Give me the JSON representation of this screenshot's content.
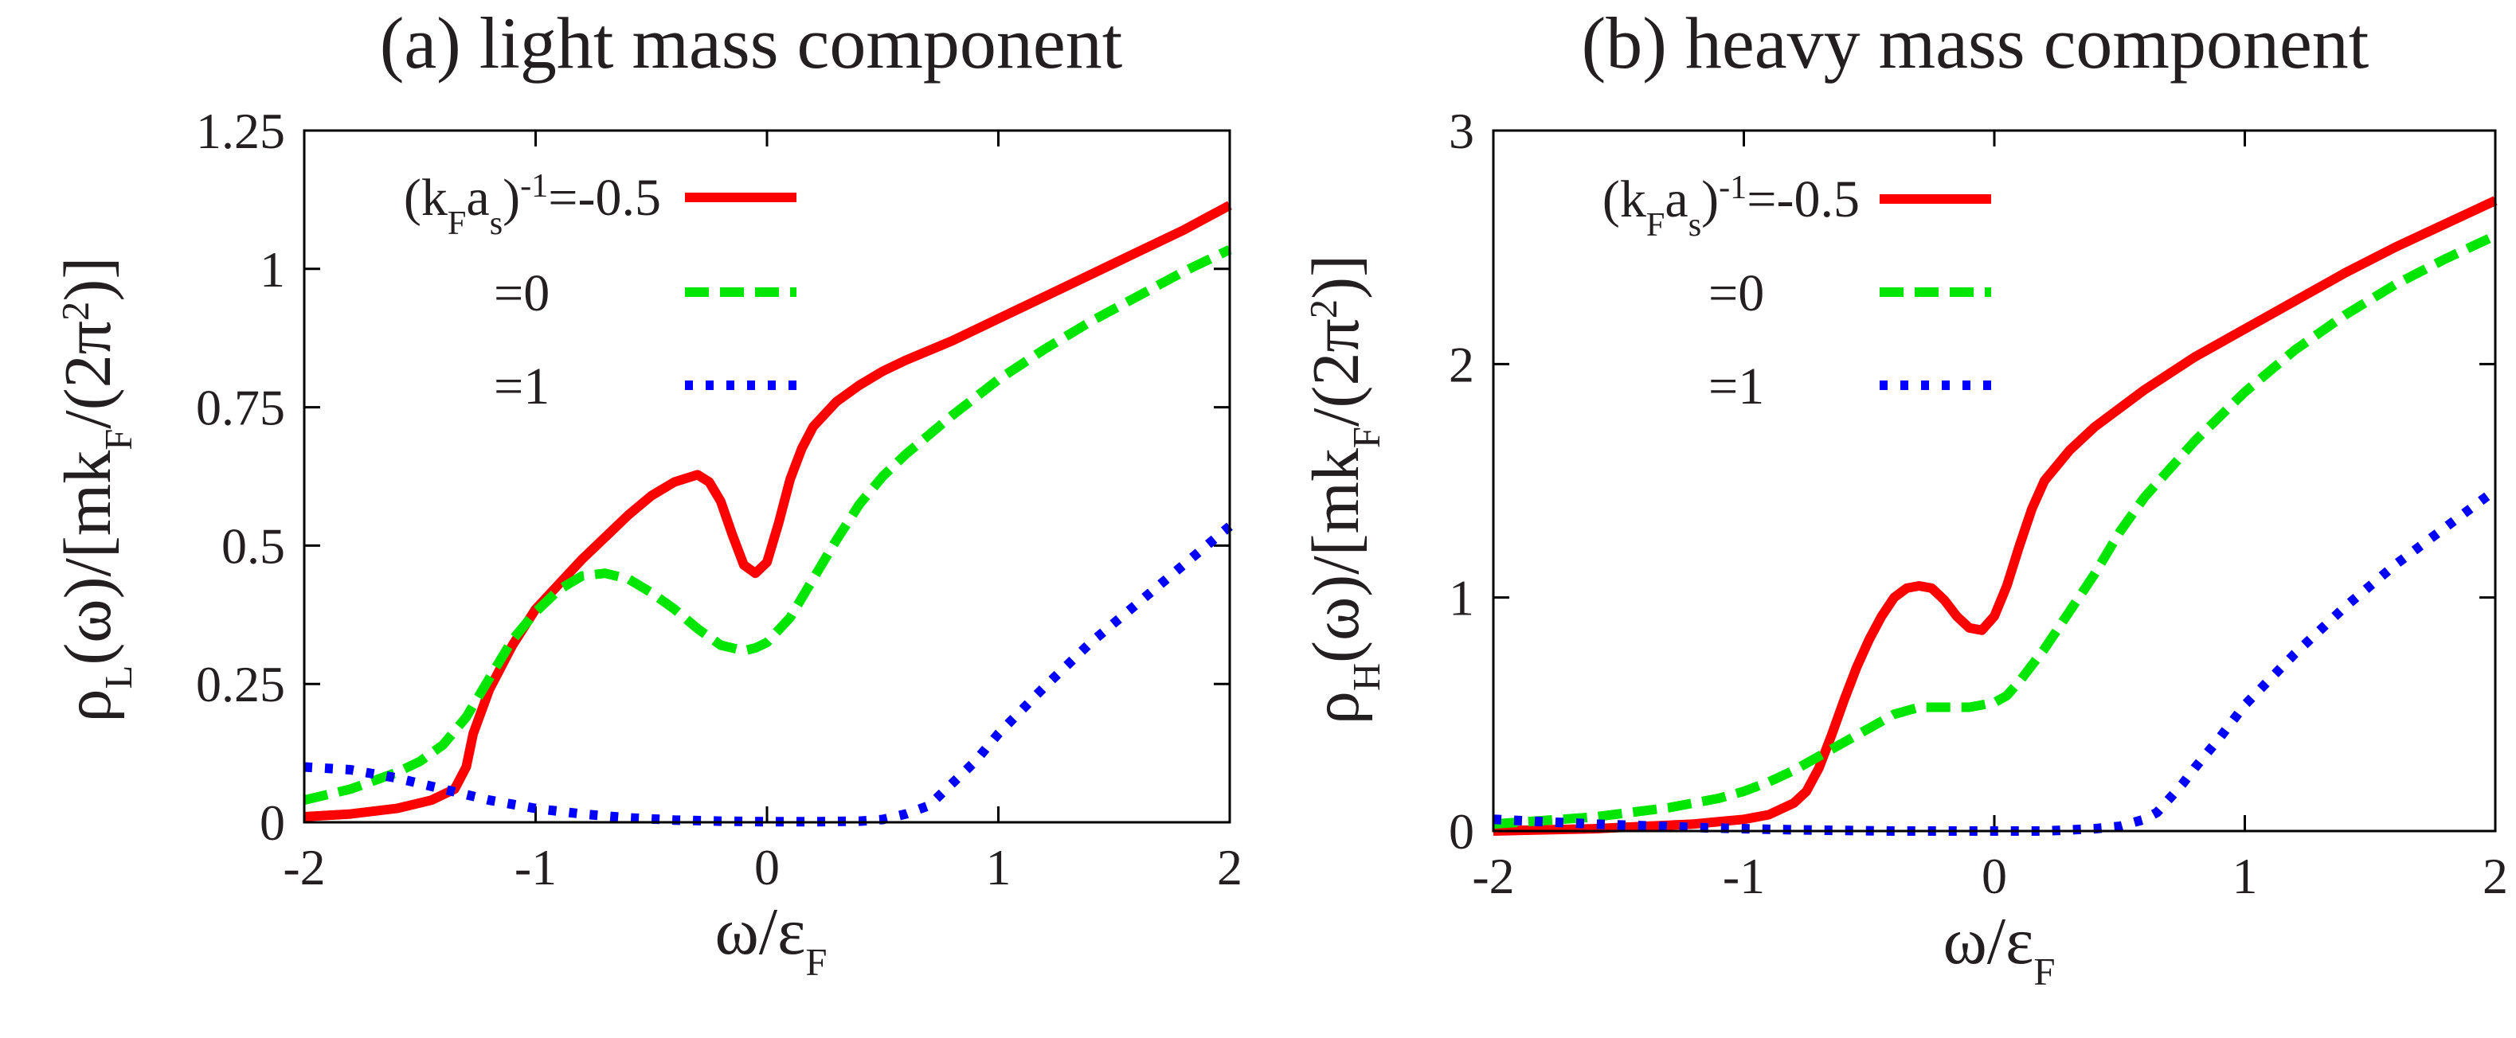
{
  "chart_data": [
    {
      "type": "line",
      "title": "(a) light mass component",
      "ylabel": {
        "pre": "ρ",
        "sub": "L",
        "mid": "(ω)/[mk",
        "sub2": "F",
        "post": "/(2π",
        "sup": "2",
        "end": ")]"
      },
      "xlabel": {
        "pre": "ω/ε",
        "sub": "F"
      },
      "xlim": [
        -2,
        2
      ],
      "ylim": [
        0,
        1.25
      ],
      "xticks": [
        -2,
        -1,
        0,
        1,
        2
      ],
      "xtick_labels": [
        "-2",
        "-1",
        "0",
        "1",
        "2"
      ],
      "yticks": [
        0,
        0.25,
        0.5,
        0.75,
        1,
        1.25
      ],
      "ytick_labels": [
        "0",
        "0.25",
        "0.5",
        "0.75",
        "1",
        "1.25"
      ],
      "legend": {
        "placement": "top-left",
        "header": {
          "pre": "(k",
          "sub1": "F",
          "mid": "a",
          "sub2": "s",
          "post": ")",
          "sup": "-1",
          "eq": "=-0.5"
        }
      },
      "series": [
        {
          "name": "=-0.5",
          "color": "#ff0000",
          "style": "solid",
          "x": [
            -2,
            -1.8,
            -1.6,
            -1.5,
            -1.45,
            -1.4,
            -1.35,
            -1.3,
            -1.27,
            -1.2,
            -1.1,
            -1.0,
            -0.9,
            -0.8,
            -0.7,
            -0.6,
            -0.5,
            -0.4,
            -0.3,
            -0.25,
            -0.2,
            -0.15,
            -0.1,
            -0.05,
            0.0,
            0.05,
            0.1,
            0.15,
            0.2,
            0.3,
            0.4,
            0.5,
            0.6,
            0.8,
            1.0,
            1.2,
            1.4,
            1.6,
            1.8,
            2.0
          ],
          "y": [
            0.01,
            0.015,
            0.025,
            0.035,
            0.04,
            0.05,
            0.06,
            0.1,
            0.16,
            0.24,
            0.32,
            0.385,
            0.43,
            0.475,
            0.515,
            0.555,
            0.59,
            0.615,
            0.628,
            0.615,
            0.58,
            0.52,
            0.465,
            0.45,
            0.47,
            0.54,
            0.62,
            0.675,
            0.715,
            0.76,
            0.79,
            0.815,
            0.835,
            0.87,
            0.91,
            0.95,
            0.99,
            1.03,
            1.07,
            1.115
          ]
        },
        {
          "name": "=0",
          "color": "#00e600",
          "style": "dashed",
          "x": [
            -2,
            -1.8,
            -1.6,
            -1.5,
            -1.4,
            -1.3,
            -1.2,
            -1.1,
            -1.0,
            -0.9,
            -0.8,
            -0.7,
            -0.6,
            -0.5,
            -0.4,
            -0.3,
            -0.2,
            -0.1,
            -0.05,
            0.0,
            0.1,
            0.2,
            0.3,
            0.4,
            0.5,
            0.6,
            0.8,
            1.0,
            1.2,
            1.4,
            1.6,
            1.8,
            2.0
          ],
          "y": [
            0.04,
            0.06,
            0.09,
            0.11,
            0.14,
            0.19,
            0.26,
            0.33,
            0.38,
            0.42,
            0.445,
            0.45,
            0.44,
            0.415,
            0.385,
            0.35,
            0.32,
            0.31,
            0.315,
            0.325,
            0.37,
            0.44,
            0.51,
            0.575,
            0.625,
            0.665,
            0.735,
            0.8,
            0.855,
            0.905,
            0.95,
            0.995,
            1.035
          ]
        },
        {
          "name": "=1",
          "color": "#0000ff",
          "style": "dotted",
          "x": [
            -2,
            -1.8,
            -1.6,
            -1.4,
            -1.2,
            -1.0,
            -0.8,
            -0.6,
            -0.4,
            -0.2,
            0.0,
            0.2,
            0.4,
            0.5,
            0.6,
            0.7,
            0.8,
            0.9,
            1.0,
            1.2,
            1.4,
            1.6,
            1.8,
            2.0
          ],
          "y": [
            0.1,
            0.095,
            0.08,
            0.06,
            0.04,
            0.025,
            0.015,
            0.008,
            0.004,
            0.002,
            0.001,
            0.001,
            0.002,
            0.005,
            0.015,
            0.03,
            0.07,
            0.11,
            0.16,
            0.245,
            0.325,
            0.395,
            0.465,
            0.535
          ]
        }
      ]
    },
    {
      "type": "line",
      "title": "(b) heavy mass component",
      "ylabel": {
        "pre": "ρ",
        "sub": "H",
        "mid": "(ω)/[mk",
        "sub2": "F",
        "post": "/(2π",
        "sup": "2",
        "end": ")]"
      },
      "xlabel": {
        "pre": "ω/ε",
        "sub": "F"
      },
      "xlim": [
        -2,
        2
      ],
      "ylim": [
        0,
        3
      ],
      "xticks": [
        -2,
        -1,
        0,
        1,
        2
      ],
      "xtick_labels": [
        "-2",
        "-1",
        "0",
        "1",
        "2"
      ],
      "yticks": [
        0,
        1,
        2,
        3
      ],
      "ytick_labels": [
        "0",
        "1",
        "2",
        "3"
      ],
      "legend": {
        "placement": "top-left",
        "header": {
          "pre": "(k",
          "sub1": "F",
          "mid": "a",
          "sub2": "s",
          "post": ")",
          "sup": "-1",
          "eq": "=-0.5"
        }
      },
      "series": [
        {
          "name": "=-0.5",
          "color": "#ff0000",
          "style": "solid",
          "x": [
            -2,
            -1.6,
            -1.2,
            -1.0,
            -0.9,
            -0.8,
            -0.75,
            -0.7,
            -0.65,
            -0.6,
            -0.55,
            -0.5,
            -0.45,
            -0.4,
            -0.35,
            -0.3,
            -0.25,
            -0.2,
            -0.15,
            -0.1,
            -0.05,
            0.0,
            0.05,
            0.1,
            0.15,
            0.2,
            0.3,
            0.4,
            0.6,
            0.8,
            1.0,
            1.2,
            1.4,
            1.6,
            1.8,
            2.0
          ],
          "y": [
            0.0,
            0.01,
            0.03,
            0.05,
            0.07,
            0.12,
            0.17,
            0.27,
            0.41,
            0.56,
            0.7,
            0.82,
            0.92,
            1.0,
            1.04,
            1.05,
            1.04,
            0.99,
            0.92,
            0.87,
            0.86,
            0.92,
            1.05,
            1.22,
            1.38,
            1.5,
            1.63,
            1.73,
            1.89,
            2.03,
            2.15,
            2.27,
            2.39,
            2.5,
            2.6,
            2.7
          ]
        },
        {
          "name": "=0",
          "color": "#00e600",
          "style": "dashed",
          "x": [
            -2,
            -1.6,
            -1.3,
            -1.1,
            -1.0,
            -0.9,
            -0.8,
            -0.7,
            -0.6,
            -0.5,
            -0.4,
            -0.3,
            -0.2,
            -0.1,
            0.0,
            0.05,
            0.1,
            0.2,
            0.3,
            0.4,
            0.5,
            0.6,
            0.8,
            1.0,
            1.2,
            1.4,
            1.6,
            1.8,
            2.0
          ],
          "y": [
            0.03,
            0.06,
            0.1,
            0.14,
            0.17,
            0.21,
            0.26,
            0.32,
            0.38,
            0.44,
            0.5,
            0.53,
            0.53,
            0.53,
            0.55,
            0.58,
            0.64,
            0.78,
            0.94,
            1.1,
            1.28,
            1.43,
            1.67,
            1.88,
            2.06,
            2.21,
            2.34,
            2.45,
            2.55
          ]
        },
        {
          "name": "=1",
          "color": "#0000ff",
          "style": "dotted",
          "x": [
            -2,
            -1.6,
            -1.2,
            -0.8,
            -0.4,
            0.0,
            0.2,
            0.4,
            0.5,
            0.6,
            0.65,
            0.7,
            0.75,
            0.8,
            0.9,
            1.0,
            1.2,
            1.4,
            1.6,
            1.8,
            2.0
          ],
          "y": [
            0.05,
            0.03,
            0.015,
            0.005,
            0.0,
            0.0,
            0.0,
            0.01,
            0.02,
            0.05,
            0.08,
            0.14,
            0.2,
            0.27,
            0.4,
            0.54,
            0.76,
            0.96,
            1.14,
            1.3,
            1.46
          ]
        }
      ]
    }
  ]
}
